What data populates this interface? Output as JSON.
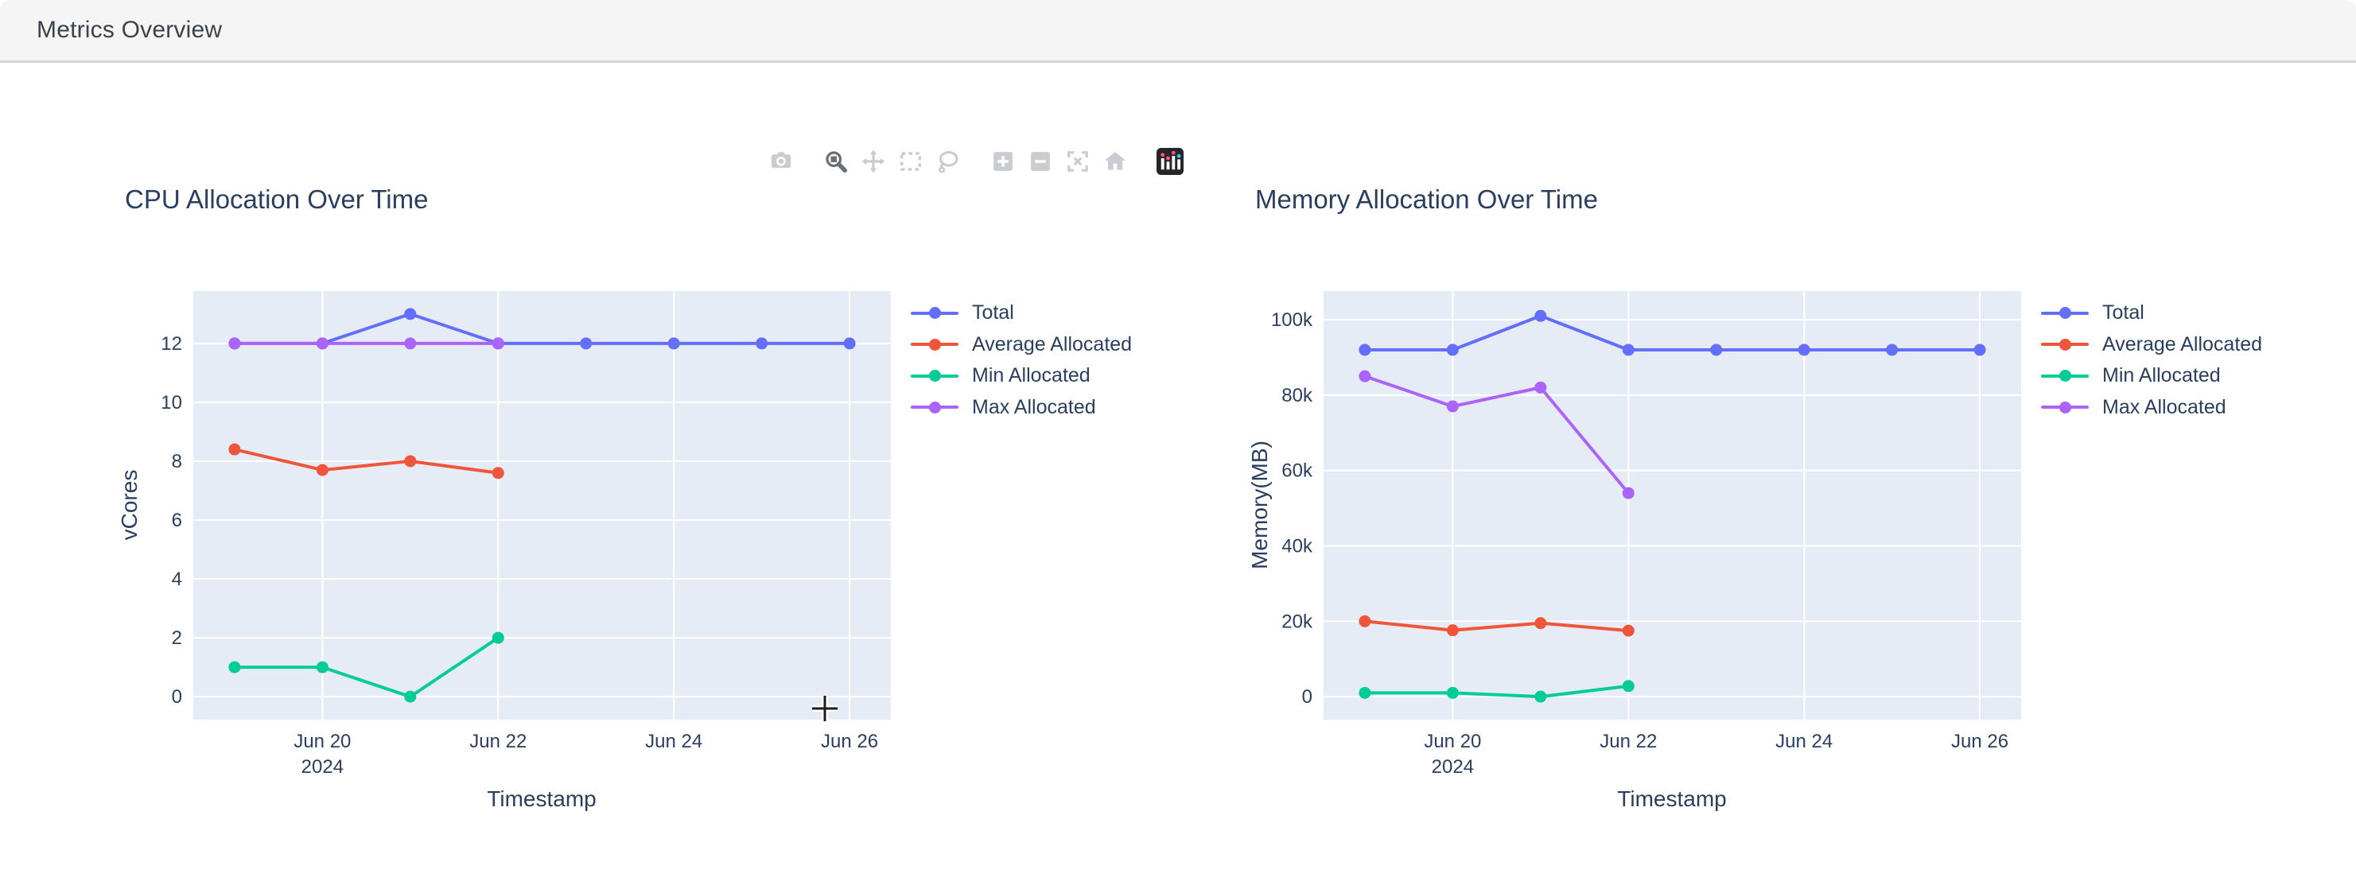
{
  "window": {
    "title": "Metrics Overview"
  },
  "modebar": {
    "icons": [
      {
        "name": "camera-icon",
        "active": false
      },
      {
        "name": "zoom-icon",
        "active": true
      },
      {
        "name": "pan-icon",
        "active": false
      },
      {
        "name": "box-select-icon",
        "active": false
      },
      {
        "name": "lasso-select-icon",
        "active": false
      },
      {
        "name": "zoom-in-icon",
        "active": false
      },
      {
        "name": "zoom-out-icon",
        "active": false
      },
      {
        "name": "autoscale-icon",
        "active": false
      },
      {
        "name": "home-icon",
        "active": false
      },
      {
        "name": "plotly-logo-icon",
        "active": false
      }
    ],
    "inactive_color": "#c9ccd0",
    "active_color": "#6b7076"
  },
  "colors": {
    "plot_bg": "#e5ecf6",
    "grid": "#ffffff",
    "axis_text": "#2a3f5f",
    "header_bg": "#f5f5f6",
    "header_border": "#d2d5d8"
  },
  "chart_data": [
    {
      "type": "line",
      "title": "CPU Allocation Over Time",
      "xlabel": "Timestamp",
      "ylabel": "vCores",
      "x_days_month": "Jun 2024",
      "xlim_days": [
        18.53,
        26.47
      ],
      "x_ticks": [
        {
          "day": 20,
          "label": "Jun 20",
          "sublabel": "2024"
        },
        {
          "day": 22,
          "label": "Jun 22"
        },
        {
          "day": 24,
          "label": "Jun 24"
        },
        {
          "day": 26,
          "label": "Jun 26"
        }
      ],
      "ylim": [
        -0.78,
        13.78
      ],
      "y_ticks": [
        {
          "v": 0,
          "label": "0"
        },
        {
          "v": 2,
          "label": "2"
        },
        {
          "v": 4,
          "label": "4"
        },
        {
          "v": 6,
          "label": "6"
        },
        {
          "v": 8,
          "label": "8"
        },
        {
          "v": 10,
          "label": "10"
        },
        {
          "v": 12,
          "label": "12"
        }
      ],
      "grid": true,
      "legend_position": "right",
      "series": [
        {
          "name": "Total",
          "color": "#636EFA",
          "x_days": [
            19,
            20,
            21,
            22,
            23,
            24,
            25,
            26
          ],
          "values": [
            12,
            12,
            13,
            12,
            12,
            12,
            12,
            12
          ]
        },
        {
          "name": "Average Allocated",
          "color": "#EF553B",
          "x_days": [
            19,
            20,
            21,
            22
          ],
          "values": [
            8.4,
            7.7,
            8.0,
            7.6
          ]
        },
        {
          "name": "Min Allocated",
          "color": "#00CC96",
          "x_days": [
            19,
            20,
            21,
            22
          ],
          "values": [
            1,
            1,
            0,
            2
          ]
        },
        {
          "name": "Max Allocated",
          "color": "#AB63FA",
          "x_days": [
            19,
            20,
            21,
            22
          ],
          "values": [
            12,
            12,
            12,
            12
          ]
        }
      ]
    },
    {
      "type": "line",
      "title": "Memory Allocation Over Time",
      "xlabel": "Timestamp",
      "ylabel": "Memory(MB)",
      "x_days_month": "Jun 2024",
      "xlim_days": [
        18.53,
        26.47
      ],
      "x_ticks": [
        {
          "day": 20,
          "label": "Jun 20",
          "sublabel": "2024"
        },
        {
          "day": 22,
          "label": "Jun 22"
        },
        {
          "day": 24,
          "label": "Jun 24"
        },
        {
          "day": 26,
          "label": "Jun 26"
        }
      ],
      "ylim": [
        -6100,
        107600
      ],
      "y_ticks": [
        {
          "v": 0,
          "label": "0"
        },
        {
          "v": 20000,
          "label": "20k"
        },
        {
          "v": 40000,
          "label": "40k"
        },
        {
          "v": 60000,
          "label": "60k"
        },
        {
          "v": 80000,
          "label": "80k"
        },
        {
          "v": 100000,
          "label": "100k"
        }
      ],
      "grid": true,
      "legend_position": "right",
      "series": [
        {
          "name": "Total",
          "color": "#636EFA",
          "x_days": [
            19,
            20,
            21,
            22,
            23,
            24,
            25,
            26
          ],
          "values": [
            92000,
            92000,
            101000,
            92000,
            92000,
            92000,
            92000,
            92000
          ]
        },
        {
          "name": "Average Allocated",
          "color": "#EF553B",
          "x_days": [
            19,
            20,
            21,
            22
          ],
          "values": [
            20000,
            17600,
            19500,
            17500
          ]
        },
        {
          "name": "Min Allocated",
          "color": "#00CC96",
          "x_days": [
            19,
            20,
            21,
            22
          ],
          "values": [
            1000,
            1000,
            0,
            2800
          ]
        },
        {
          "name": "Max Allocated",
          "color": "#AB63FA",
          "x_days": [
            19,
            20,
            21,
            22
          ],
          "values": [
            85000,
            77000,
            82000,
            54000
          ]
        }
      ]
    }
  ]
}
